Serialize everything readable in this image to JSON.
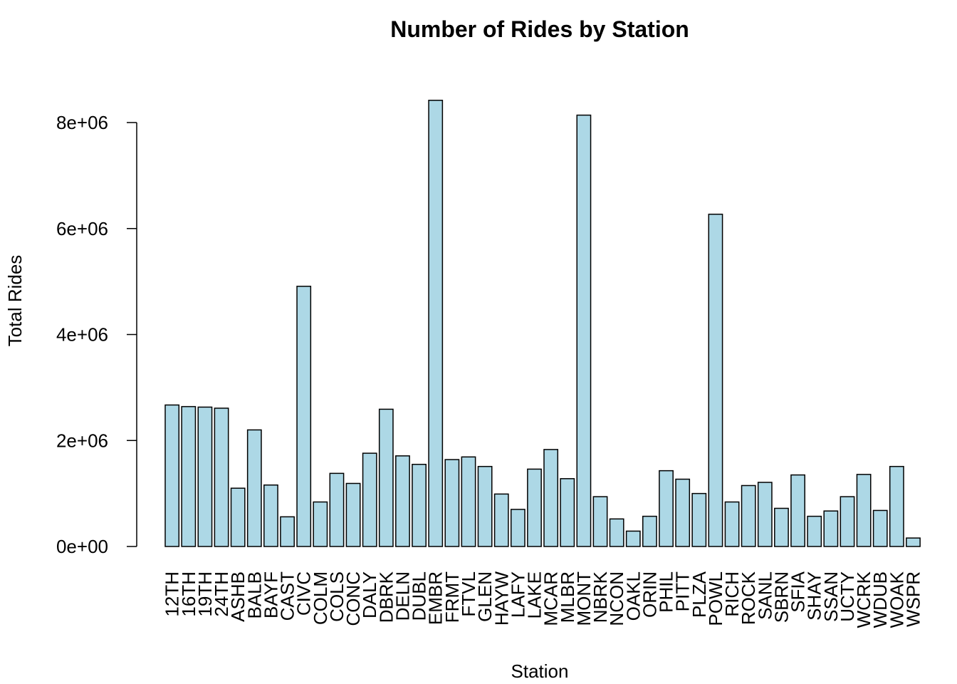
{
  "chart_data": {
    "type": "bar",
    "title": "Number of Rides by Station",
    "xlabel": "Station",
    "ylabel": "Total Rides",
    "ylim": [
      0,
      8400000
    ],
    "yticks": [
      0,
      2000000,
      4000000,
      6000000,
      8000000
    ],
    "ytick_labels": [
      "0e+00",
      "2e+06",
      "4e+06",
      "6e+06",
      "8e+06"
    ],
    "grid": false,
    "legend": "none",
    "bar_color": "#add8e6",
    "edge_color": "#000000",
    "categories": [
      "12TH",
      "16TH",
      "19TH",
      "24TH",
      "ASHB",
      "BALB",
      "BAYF",
      "CAST",
      "CIVC",
      "COLM",
      "COLS",
      "CONC",
      "DALY",
      "DBRK",
      "DELN",
      "DUBL",
      "EMBR",
      "FRMT",
      "FTVL",
      "GLEN",
      "HAYW",
      "LAFY",
      "LAKE",
      "MCAR",
      "MLBR",
      "MONT",
      "NBRK",
      "NCON",
      "OAKL",
      "ORIN",
      "PHIL",
      "PITT",
      "PLZA",
      "POWL",
      "RICH",
      "ROCK",
      "SANL",
      "SBRN",
      "SFIA",
      "SHAY",
      "SSAN",
      "UCTY",
      "WCRK",
      "WDUB",
      "WOAK",
      "WSPR"
    ],
    "values": [
      2670000,
      2640000,
      2630000,
      2610000,
      1100000,
      2200000,
      1160000,
      560000,
      4910000,
      840000,
      1380000,
      1190000,
      1760000,
      2590000,
      1710000,
      1550000,
      8420000,
      1640000,
      1690000,
      1510000,
      990000,
      700000,
      1460000,
      1830000,
      1280000,
      8140000,
      940000,
      520000,
      290000,
      570000,
      1430000,
      1270000,
      1000000,
      6270000,
      840000,
      1150000,
      1210000,
      720000,
      1350000,
      570000,
      670000,
      940000,
      1360000,
      680000,
      1510000,
      160000
    ]
  }
}
